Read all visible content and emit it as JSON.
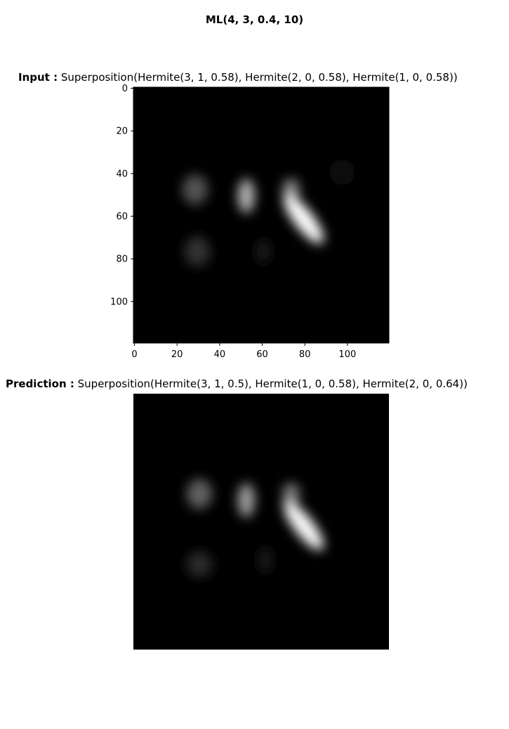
{
  "figure_title": "ML(4, 3, 0.4, 10)",
  "chart_data": [
    {
      "type": "heatmap",
      "name": "input",
      "title_label": "Input :",
      "title_text": "Superposition(Hermite(3, 1, 0.58), Hermite(2, 0, 0.58), Hermite(1, 0, 0.58))",
      "colormap": "gray",
      "image_size": [
        120,
        120
      ],
      "x_ticks": [
        0,
        20,
        40,
        60,
        80,
        100
      ],
      "y_ticks": [
        0,
        20,
        40,
        60,
        80,
        100
      ],
      "xlim": [
        0,
        120
      ],
      "ylim": [
        120,
        0
      ],
      "show_axes": true,
      "grid": false,
      "intensity_features": [
        {
          "cx": 29,
          "cy": 48,
          "sx": 6,
          "sy": 7,
          "amp": 0.32
        },
        {
          "cx": 53,
          "cy": 51,
          "sx": 4,
          "sy": 8,
          "amp": 0.7
        },
        {
          "cx": 74,
          "cy": 48,
          "sx": 4,
          "sy": 5,
          "amp": 0.55
        },
        {
          "cx": 80,
          "cy": 62,
          "sx": 4.5,
          "sy": 14,
          "angle": -38,
          "amp": 1.0
        },
        {
          "cx": 30,
          "cy": 77,
          "sx": 6,
          "sy": 7,
          "amp": 0.2
        },
        {
          "cx": 61,
          "cy": 77,
          "sx": 3,
          "sy": 6,
          "amp": 0.12
        },
        {
          "cx": 98,
          "cy": 40,
          "sx": 6,
          "sy": 6,
          "amp": 0.06
        }
      ]
    },
    {
      "type": "heatmap",
      "name": "prediction",
      "title_label": "Prediction :",
      "title_text": "Superposition(Hermite(3, 1, 0.5), Hermite(1, 0, 0.58), Hermite(2, 0, 0.64))",
      "colormap": "gray",
      "image_size": [
        120,
        120
      ],
      "show_axes": false,
      "grid": false,
      "intensity_features": [
        {
          "cx": 31,
          "cy": 47,
          "sx": 6,
          "sy": 7,
          "amp": 0.38
        },
        {
          "cx": 53,
          "cy": 50,
          "sx": 4,
          "sy": 8,
          "amp": 0.62
        },
        {
          "cx": 74,
          "cy": 47,
          "sx": 4,
          "sy": 5,
          "amp": 0.5
        },
        {
          "cx": 80,
          "cy": 62,
          "sx": 4.5,
          "sy": 14,
          "angle": -38,
          "amp": 0.98
        },
        {
          "cx": 31,
          "cy": 80,
          "sx": 6,
          "sy": 6,
          "amp": 0.16
        },
        {
          "cx": 62,
          "cy": 78,
          "sx": 3,
          "sy": 6,
          "amp": 0.1
        }
      ]
    }
  ]
}
